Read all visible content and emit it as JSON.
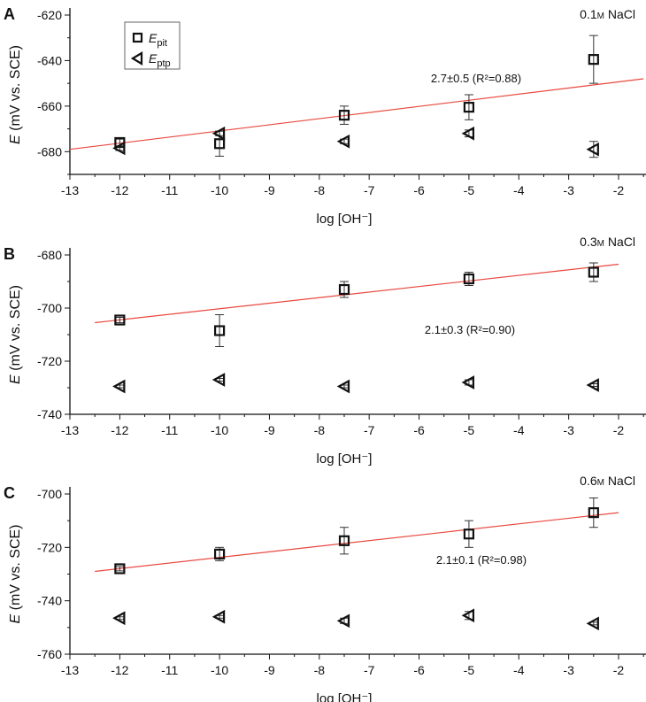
{
  "chart_data": [
    {
      "type": "scatter",
      "panel_label": "A",
      "condition": "0.1 M NaCl",
      "condition_parts": [
        "0.1",
        "M",
        "NaCl"
      ],
      "xlabel": "log [OH⁻]",
      "ylabel": "E (mV vs. SCE)",
      "xlim": [
        -13,
        -1.5
      ],
      "ylim": [
        -690,
        -620
      ],
      "xticks": [
        -13,
        -12,
        -11,
        -10,
        -9,
        -8,
        -7,
        -6,
        -5,
        -4,
        -3,
        -2
      ],
      "yticks": [
        -680,
        -660,
        -640,
        -620
      ],
      "grid": false,
      "legend": {
        "placement": "top-left",
        "entries": [
          {
            "symbol": "E",
            "sub": "pit",
            "marker": "square"
          },
          {
            "symbol": "E",
            "sub": "ptp",
            "marker": "left-triangle"
          }
        ]
      },
      "series": [
        {
          "name": "Epit",
          "marker": "square",
          "x": [
            -12,
            -10,
            -7.5,
            -5,
            -2.5
          ],
          "y": [
            -676,
            -676.5,
            -664,
            -660.5,
            -639.5
          ],
          "err": [
            1.5,
            5.5,
            4,
            5.5,
            10.5
          ]
        },
        {
          "name": "Eptp",
          "marker": "left-triangle",
          "x": [
            -12,
            -10,
            -7.5,
            -5,
            -2.5
          ],
          "y": [
            -678.5,
            -672,
            -675.5,
            -672,
            -679
          ],
          "err": [
            1,
            1,
            1,
            1.5,
            3.5
          ]
        }
      ],
      "fit": {
        "label": "2.7±0.5 (R²=0.88)",
        "slope": "2.7±0.5",
        "r2": "0.88",
        "x": [
          -13,
          -1.5
        ],
        "y": [
          -679,
          -648
        ],
        "color": "#e8483f"
      }
    },
    {
      "type": "scatter",
      "panel_label": "B",
      "condition": "0.3 M NaCl",
      "condition_parts": [
        "0.3",
        "M",
        "NaCl"
      ],
      "xlabel": "log [OH⁻]",
      "ylabel": "E (mV vs. SCE)",
      "xlim": [
        -13,
        -1.5
      ],
      "ylim": [
        -740,
        -680
      ],
      "xticks": [
        -13,
        -12,
        -11,
        -10,
        -9,
        -8,
        -7,
        -6,
        -5,
        -4,
        -3,
        -2
      ],
      "yticks": [
        -740,
        -720,
        -700,
        -680
      ],
      "grid": false,
      "series": [
        {
          "name": "Epit",
          "marker": "square",
          "x": [
            -12,
            -10,
            -7.5,
            -5,
            -2.5
          ],
          "y": [
            -704.5,
            -708.5,
            -693,
            -689,
            -686.5
          ],
          "err": [
            1,
            6,
            3,
            2.5,
            3.5
          ]
        },
        {
          "name": "Eptp",
          "marker": "left-triangle",
          "x": [
            -12,
            -10,
            -7.5,
            -5,
            -2.5
          ],
          "y": [
            -729.5,
            -727,
            -729.5,
            -728,
            -729
          ],
          "err": [
            0.5,
            0.5,
            0.5,
            1,
            0.5
          ]
        }
      ],
      "fit": {
        "label": "2.1±0.3 (R²=0.90)",
        "slope": "2.1±0.3",
        "r2": "0.90",
        "x": [
          -12.5,
          -2
        ],
        "y": [
          -705.5,
          -683.5
        ],
        "color": "#e8483f"
      }
    },
    {
      "type": "scatter",
      "panel_label": "C",
      "condition": "0.6 M NaCl",
      "condition_parts": [
        "0.6",
        "M",
        "NaCl"
      ],
      "xlabel": "log [OH⁻]",
      "ylabel": "E (mV vs. SCE)",
      "xlim": [
        -13,
        -1.5
      ],
      "ylim": [
        -760,
        -700
      ],
      "xticks": [
        -13,
        -12,
        -11,
        -10,
        -9,
        -8,
        -7,
        -6,
        -5,
        -4,
        -3,
        -2
      ],
      "yticks": [
        -760,
        -740,
        -720,
        -700
      ],
      "grid": false,
      "series": [
        {
          "name": "Epit",
          "marker": "square",
          "x": [
            -12,
            -10,
            -7.5,
            -5,
            -2.5
          ],
          "y": [
            -728,
            -722.5,
            -717.5,
            -715,
            -707
          ],
          "err": [
            0.8,
            2.5,
            5,
            5,
            5.5
          ]
        },
        {
          "name": "Eptp",
          "marker": "left-triangle",
          "x": [
            -12,
            -10,
            -7.5,
            -5,
            -2.5
          ],
          "y": [
            -746.5,
            -746,
            -747.5,
            -745.5,
            -748.5
          ],
          "err": [
            0.5,
            0.5,
            1,
            1.5,
            0.5
          ]
        }
      ],
      "fit": {
        "label": "2.1±0.1 (R²=0.98)",
        "slope": "2.1±0.1",
        "r2": "0.98",
        "x": [
          -12.5,
          -2
        ],
        "y": [
          -729,
          -707
        ],
        "color": "#e8483f"
      }
    }
  ]
}
